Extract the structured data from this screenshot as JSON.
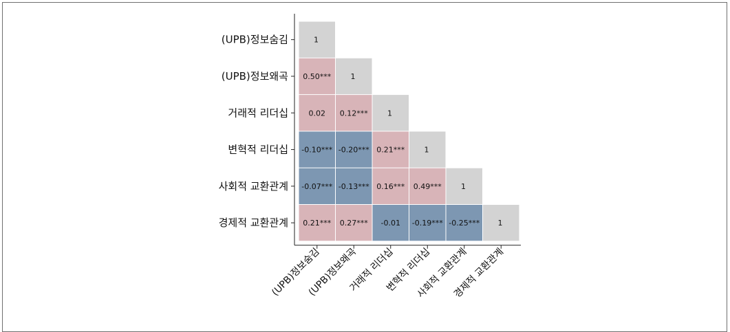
{
  "chart_data": {
    "type": "heatmap",
    "title": "",
    "xlabel": "",
    "ylabel": "",
    "variables": [
      "(UPB)정보숨김",
      "(UPB)정보왜곡",
      "거래적 리더십",
      "변혁적 리더십",
      "사회적 교환관계",
      "경제적 교환관계"
    ],
    "layout": "lower-triangle",
    "colors": {
      "positive": "#d8b4b8",
      "negative": "#7d97b2",
      "diagonal": "#d3d3d3",
      "cell_border": "#ffffff",
      "axis": "#222222"
    },
    "cells": [
      {
        "row": 0,
        "col": 0,
        "value": 1,
        "label": "1"
      },
      {
        "row": 1,
        "col": 0,
        "value": 0.5,
        "label": "0.50***"
      },
      {
        "row": 1,
        "col": 1,
        "value": 1,
        "label": "1"
      },
      {
        "row": 2,
        "col": 0,
        "value": 0.02,
        "label": "0.02"
      },
      {
        "row": 2,
        "col": 1,
        "value": 0.12,
        "label": "0.12***"
      },
      {
        "row": 2,
        "col": 2,
        "value": 1,
        "label": "1"
      },
      {
        "row": 3,
        "col": 0,
        "value": -0.1,
        "label": "-0.10***"
      },
      {
        "row": 3,
        "col": 1,
        "value": -0.2,
        "label": "-0.20***"
      },
      {
        "row": 3,
        "col": 2,
        "value": 0.21,
        "label": "0.21***"
      },
      {
        "row": 3,
        "col": 3,
        "value": 1,
        "label": "1"
      },
      {
        "row": 4,
        "col": 0,
        "value": -0.07,
        "label": "-0.07***"
      },
      {
        "row": 4,
        "col": 1,
        "value": -0.13,
        "label": "-0.13***"
      },
      {
        "row": 4,
        "col": 2,
        "value": 0.16,
        "label": "0.16***"
      },
      {
        "row": 4,
        "col": 3,
        "value": 0.49,
        "label": "0.49***"
      },
      {
        "row": 4,
        "col": 4,
        "value": 1,
        "label": "1"
      },
      {
        "row": 5,
        "col": 0,
        "value": 0.21,
        "label": "0.21***"
      },
      {
        "row": 5,
        "col": 1,
        "value": 0.27,
        "label": "0.27***"
      },
      {
        "row": 5,
        "col": 2,
        "value": -0.01,
        "label": "-0.01"
      },
      {
        "row": 5,
        "col": 3,
        "value": -0.19,
        "label": "-0.19***"
      },
      {
        "row": 5,
        "col": 4,
        "value": -0.25,
        "label": "-0.25***"
      },
      {
        "row": 5,
        "col": 5,
        "value": 1,
        "label": "1"
      }
    ]
  }
}
